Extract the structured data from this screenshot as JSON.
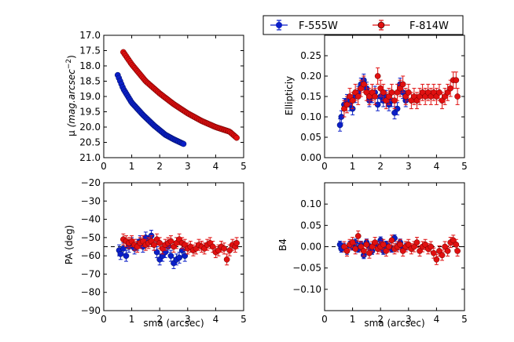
{
  "legend": {
    "entries": [
      {
        "label": "F-555W",
        "color": "#0b1fc8"
      },
      {
        "label": "F-814W",
        "color": "#e01010"
      }
    ]
  },
  "chart_data": [
    {
      "id": "panel-sb",
      "type": "scatter",
      "ylabel_main": "μ",
      "ylabel_unit": "(mag.arcsec",
      "ylabel_exp": "−2",
      "ylabel_close": ")",
      "xlabel": "",
      "xlim": [
        0,
        5
      ],
      "ylim": [
        21.0,
        17.0
      ],
      "x_ticks": [
        "0",
        "1",
        "2",
        "3",
        "4",
        "5"
      ],
      "y_ticks": [
        "17.0",
        "17.5",
        "18.0",
        "18.5",
        "19.0",
        "19.5",
        "20.0",
        "20.5",
        "21.0"
      ],
      "series": [
        {
          "name": "F-555W",
          "color": "#0b1fc8",
          "x_start": 0.5,
          "x_end": 2.85,
          "count": 55,
          "knots": [
            [
              0.5,
              18.3
            ],
            [
              0.7,
              18.75
            ],
            [
              1.0,
              19.2
            ],
            [
              1.4,
              19.6
            ],
            [
              1.8,
              19.95
            ],
            [
              2.2,
              20.25
            ],
            [
              2.5,
              20.4
            ],
            [
              2.85,
              20.55
            ]
          ]
        },
        {
          "name": "F-814W",
          "color": "#e01010",
          "x_start": 0.7,
          "x_end": 4.75,
          "count": 90,
          "knots": [
            [
              0.7,
              17.55
            ],
            [
              1.0,
              17.95
            ],
            [
              1.5,
              18.5
            ],
            [
              2.0,
              18.9
            ],
            [
              2.5,
              19.25
            ],
            [
              3.0,
              19.55
            ],
            [
              3.5,
              19.8
            ],
            [
              4.0,
              20.0
            ],
            [
              4.5,
              20.15
            ],
            [
              4.75,
              20.35
            ]
          ]
        }
      ]
    },
    {
      "id": "panel-ellipticity",
      "type": "scatter",
      "ylabel": "Ellipticiy",
      "xlabel": "",
      "xlim": [
        0,
        5
      ],
      "ylim": [
        0.0,
        0.3
      ],
      "x_ticks": [
        "0",
        "1",
        "2",
        "3",
        "4",
        "5"
      ],
      "y_ticks": [
        "0.00",
        "0.05",
        "0.10",
        "0.15",
        "0.20",
        "0.25"
      ],
      "ref_line": 0.0,
      "series": [
        {
          "name": "F-555W",
          "color": "#0b1fc8",
          "error": 0.015,
          "points": [
            [
              0.55,
              0.08
            ],
            [
              0.6,
              0.1
            ],
            [
              0.7,
              0.13
            ],
            [
              0.8,
              0.14
            ],
            [
              0.9,
              0.13
            ],
            [
              1.0,
              0.12
            ],
            [
              1.1,
              0.15
            ],
            [
              1.2,
              0.16
            ],
            [
              1.3,
              0.18
            ],
            [
              1.4,
              0.19
            ],
            [
              1.5,
              0.17
            ],
            [
              1.6,
              0.14
            ],
            [
              1.7,
              0.15
            ],
            [
              1.8,
              0.16
            ],
            [
              1.9,
              0.13
            ],
            [
              2.0,
              0.15
            ],
            [
              2.1,
              0.14
            ],
            [
              2.2,
              0.15
            ],
            [
              2.3,
              0.13
            ],
            [
              2.4,
              0.14
            ],
            [
              2.5,
              0.11
            ],
            [
              2.6,
              0.12
            ],
            [
              2.7,
              0.18
            ],
            [
              2.8,
              0.16
            ],
            [
              2.9,
              0.14
            ]
          ]
        },
        {
          "name": "F-814W",
          "color": "#e01010",
          "error": 0.02,
          "points": [
            [
              0.7,
              0.12
            ],
            [
              0.8,
              0.13
            ],
            [
              0.9,
              0.15
            ],
            [
              1.0,
              0.14
            ],
            [
              1.1,
              0.16
            ],
            [
              1.2,
              0.15
            ],
            [
              1.3,
              0.17
            ],
            [
              1.4,
              0.18
            ],
            [
              1.5,
              0.16
            ],
            [
              1.6,
              0.15
            ],
            [
              1.7,
              0.16
            ],
            [
              1.8,
              0.15
            ],
            [
              1.9,
              0.2
            ],
            [
              2.0,
              0.17
            ],
            [
              2.1,
              0.16
            ],
            [
              2.2,
              0.14
            ],
            [
              2.3,
              0.15
            ],
            [
              2.4,
              0.16
            ],
            [
              2.5,
              0.14
            ],
            [
              2.6,
              0.16
            ],
            [
              2.7,
              0.17
            ],
            [
              2.8,
              0.18
            ],
            [
              2.9,
              0.15
            ],
            [
              3.0,
              0.16
            ],
            [
              3.1,
              0.14
            ],
            [
              3.2,
              0.15
            ],
            [
              3.3,
              0.14
            ],
            [
              3.4,
              0.15
            ],
            [
              3.5,
              0.16
            ],
            [
              3.6,
              0.15
            ],
            [
              3.7,
              0.16
            ],
            [
              3.8,
              0.15
            ],
            [
              3.9,
              0.16
            ],
            [
              4.0,
              0.15
            ],
            [
              4.1,
              0.16
            ],
            [
              4.2,
              0.14
            ],
            [
              4.3,
              0.15
            ],
            [
              4.4,
              0.16
            ],
            [
              4.5,
              0.17
            ],
            [
              4.6,
              0.19
            ],
            [
              4.7,
              0.19
            ],
            [
              4.75,
              0.15
            ]
          ]
        }
      ]
    },
    {
      "id": "panel-pa",
      "type": "scatter",
      "ylabel": "PA (deg)",
      "xlabel": "sma (arcsec)",
      "xlim": [
        0,
        5
      ],
      "ylim": [
        -90,
        -20
      ],
      "x_ticks": [
        "0",
        "1",
        "2",
        "3",
        "4",
        "5"
      ],
      "y_ticks": [
        "−90",
        "−80",
        "−70",
        "−60",
        "−50",
        "−40",
        "−30",
        "−20"
      ],
      "ref_line": -55,
      "series": [
        {
          "name": "F-555W",
          "color": "#0b1fc8",
          "error": 3,
          "points": [
            [
              0.55,
              -57
            ],
            [
              0.6,
              -59
            ],
            [
              0.7,
              -56
            ],
            [
              0.8,
              -60
            ],
            [
              0.9,
              -55
            ],
            [
              1.0,
              -53
            ],
            [
              1.1,
              -56
            ],
            [
              1.2,
              -54
            ],
            [
              1.3,
              -52
            ],
            [
              1.4,
              -55
            ],
            [
              1.5,
              -50
            ],
            [
              1.6,
              -52
            ],
            [
              1.7,
              -49
            ],
            [
              1.8,
              -54
            ],
            [
              1.9,
              -58
            ],
            [
              2.0,
              -62
            ],
            [
              2.1,
              -60
            ],
            [
              2.2,
              -58
            ],
            [
              2.3,
              -55
            ],
            [
              2.4,
              -60
            ],
            [
              2.5,
              -64
            ],
            [
              2.6,
              -62
            ],
            [
              2.7,
              -61
            ],
            [
              2.8,
              -57
            ],
            [
              2.9,
              -60
            ]
          ]
        },
        {
          "name": "F-814W",
          "color": "#e01010",
          "error": 3,
          "points": [
            [
              0.7,
              -51
            ],
            [
              0.8,
              -52
            ],
            [
              0.9,
              -53
            ],
            [
              1.0,
              -52
            ],
            [
              1.1,
              -54
            ],
            [
              1.2,
              -55
            ],
            [
              1.3,
              -53
            ],
            [
              1.4,
              -52
            ],
            [
              1.5,
              -54
            ],
            [
              1.6,
              -53
            ],
            [
              1.7,
              -52
            ],
            [
              1.8,
              -54
            ],
            [
              1.9,
              -51
            ],
            [
              2.0,
              -53
            ],
            [
              2.1,
              -56
            ],
            [
              2.2,
              -54
            ],
            [
              2.3,
              -53
            ],
            [
              2.4,
              -52
            ],
            [
              2.5,
              -55
            ],
            [
              2.6,
              -53
            ],
            [
              2.7,
              -51
            ],
            [
              2.8,
              -53
            ],
            [
              2.9,
              -54
            ],
            [
              3.0,
              -56
            ],
            [
              3.1,
              -55
            ],
            [
              3.2,
              -57
            ],
            [
              3.3,
              -56
            ],
            [
              3.4,
              -54
            ],
            [
              3.5,
              -55
            ],
            [
              3.6,
              -56
            ],
            [
              3.7,
              -54
            ],
            [
              3.8,
              -53
            ],
            [
              3.9,
              -55
            ],
            [
              4.0,
              -58
            ],
            [
              4.1,
              -57
            ],
            [
              4.2,
              -55
            ],
            [
              4.3,
              -56
            ],
            [
              4.4,
              -62
            ],
            [
              4.5,
              -57
            ],
            [
              4.6,
              -54
            ],
            [
              4.7,
              -55
            ],
            [
              4.75,
              -53
            ]
          ]
        }
      ]
    },
    {
      "id": "panel-b4",
      "type": "scatter",
      "ylabel": "B4",
      "xlabel": "sma (arcsec)",
      "xlim": [
        0,
        5
      ],
      "ylim": [
        -0.15,
        0.15
      ],
      "x_ticks": [
        "0",
        "1",
        "2",
        "3",
        "4",
        "5"
      ],
      "y_ticks": [
        "−0.10",
        "−0.05",
        "0.00",
        "0.05",
        "0.10"
      ],
      "ref_line": 0.0,
      "series": [
        {
          "name": "F-555W",
          "color": "#0b1fc8",
          "error": 0.008,
          "points": [
            [
              0.55,
              0.005
            ],
            [
              0.6,
              -0.005
            ],
            [
              0.7,
              0.0
            ],
            [
              0.8,
              -0.01
            ],
            [
              0.9,
              0.005
            ],
            [
              1.0,
              0.0
            ],
            [
              1.1,
              0.01
            ],
            [
              1.2,
              -0.005
            ],
            [
              1.3,
              0.005
            ],
            [
              1.4,
              -0.02
            ],
            [
              1.5,
              0.01
            ],
            [
              1.6,
              0.0
            ],
            [
              1.7,
              -0.01
            ],
            [
              1.8,
              0.005
            ],
            [
              1.9,
              0.0
            ],
            [
              2.0,
              0.015
            ],
            [
              2.1,
              -0.01
            ],
            [
              2.2,
              0.005
            ],
            [
              2.3,
              0.0
            ],
            [
              2.4,
              -0.005
            ],
            [
              2.5,
              0.02
            ],
            [
              2.6,
              0.0
            ],
            [
              2.7,
              0.01
            ],
            [
              2.8,
              -0.005
            ],
            [
              2.9,
              0.0
            ]
          ]
        },
        {
          "name": "F-814W",
          "color": "#e01010",
          "error": 0.012,
          "points": [
            [
              0.7,
              0.0
            ],
            [
              0.8,
              -0.01
            ],
            [
              0.9,
              0.005
            ],
            [
              1.0,
              0.01
            ],
            [
              1.1,
              -0.005
            ],
            [
              1.2,
              0.025
            ],
            [
              1.3,
              0.0
            ],
            [
              1.4,
              -0.01
            ],
            [
              1.5,
              0.005
            ],
            [
              1.6,
              -0.015
            ],
            [
              1.7,
              0.0
            ],
            [
              1.8,
              0.01
            ],
            [
              1.9,
              -0.005
            ],
            [
              2.0,
              0.0
            ],
            [
              2.1,
              0.005
            ],
            [
              2.2,
              -0.01
            ],
            [
              2.3,
              0.0
            ],
            [
              2.4,
              0.015
            ],
            [
              2.5,
              -0.005
            ],
            [
              2.6,
              0.0
            ],
            [
              2.7,
              0.005
            ],
            [
              2.8,
              -0.01
            ],
            [
              2.9,
              0.0
            ],
            [
              3.0,
              0.005
            ],
            [
              3.1,
              -0.005
            ],
            [
              3.2,
              0.0
            ],
            [
              3.3,
              0.01
            ],
            [
              3.4,
              -0.01
            ],
            [
              3.5,
              0.0
            ],
            [
              3.6,
              0.005
            ],
            [
              3.7,
              -0.005
            ],
            [
              3.8,
              0.0
            ],
            [
              3.9,
              -0.015
            ],
            [
              4.0,
              -0.03
            ],
            [
              4.1,
              -0.01
            ],
            [
              4.2,
              -0.02
            ],
            [
              4.3,
              0.0
            ],
            [
              4.4,
              -0.01
            ],
            [
              4.5,
              0.01
            ],
            [
              4.6,
              0.015
            ],
            [
              4.7,
              0.005
            ],
            [
              4.75,
              -0.01
            ]
          ]
        }
      ]
    }
  ]
}
